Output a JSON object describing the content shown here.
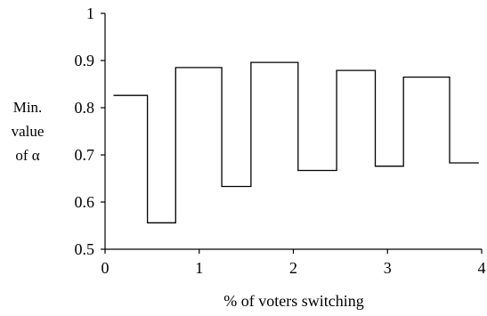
{
  "chart_data": {
    "type": "line",
    "step": true,
    "xlabel": "% of voters switching",
    "ylabel_lines": [
      "Min.",
      "value",
      "of α"
    ],
    "xlim": [
      0,
      4
    ],
    "ylim": [
      0.5,
      1
    ],
    "xticks": [
      0,
      1,
      2,
      3,
      4
    ],
    "yticks": [
      0.5,
      0.6,
      0.7,
      0.8,
      0.9,
      1
    ],
    "ytick_labels": [
      "0.5",
      "0.6",
      "0.7",
      "0.8",
      "0.9",
      "1"
    ],
    "grid": false,
    "series": [
      {
        "segments": [
          {
            "x0": 0.09,
            "x1": 0.45,
            "y": 0.826
          },
          {
            "x0": 0.45,
            "x1": 0.75,
            "y": 0.556
          },
          {
            "x0": 0.75,
            "x1": 1.24,
            "y": 0.885
          },
          {
            "x0": 1.24,
            "x1": 1.55,
            "y": 0.633
          },
          {
            "x0": 1.55,
            "x1": 2.05,
            "y": 0.896
          },
          {
            "x0": 2.05,
            "x1": 2.46,
            "y": 0.667
          },
          {
            "x0": 2.46,
            "x1": 2.87,
            "y": 0.879
          },
          {
            "x0": 2.87,
            "x1": 3.17,
            "y": 0.676
          },
          {
            "x0": 3.17,
            "x1": 3.66,
            "y": 0.865
          },
          {
            "x0": 3.66,
            "x1": 3.97,
            "y": 0.683
          }
        ]
      }
    ]
  }
}
